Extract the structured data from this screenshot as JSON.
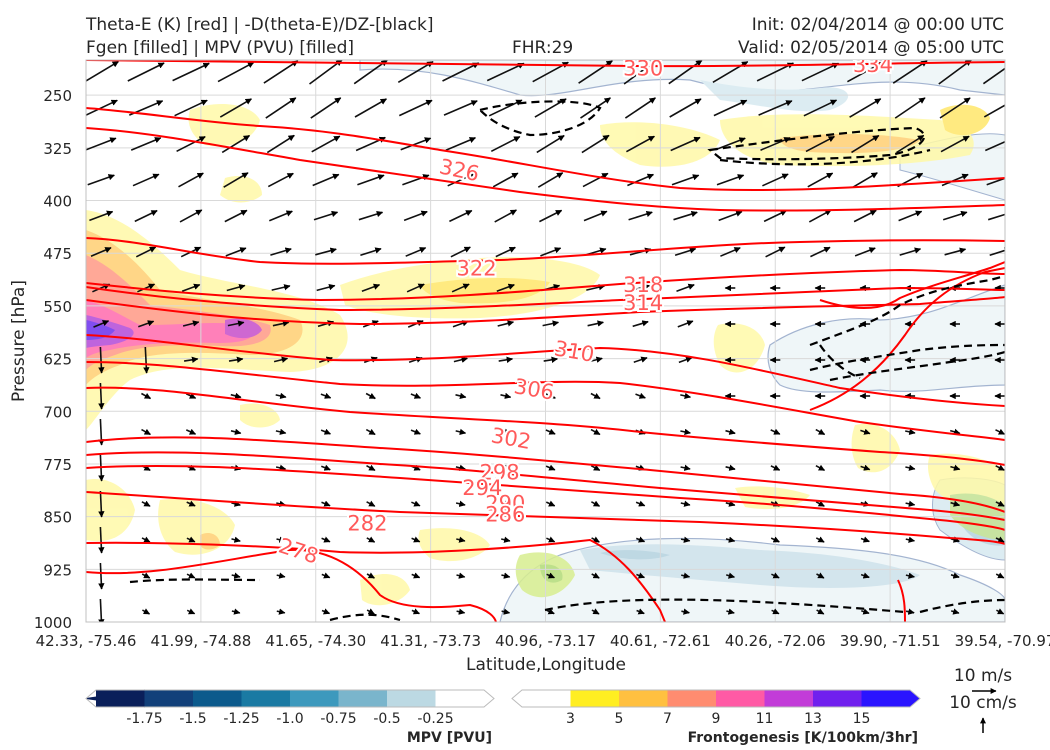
{
  "header": {
    "title_left_1": "Theta-E (K) [red] | -D(theta-E)/DZ-[black]",
    "title_left_2": "Fgen [filled] | MPV (PVU) [filled]",
    "fhr": "FHR:29",
    "init": "Init: 02/04/2014 @ 00:00 UTC",
    "valid": "Valid: 02/05/2014 @ 05:00 UTC"
  },
  "chart_data": {
    "type": "cross-section",
    "xlabel": "Latitude,Longitude",
    "ylabel": "Pressure [hPa]",
    "y_scale": "linear",
    "ylim": [
      1000,
      200
    ],
    "x_ticks": [
      "42.33, -75.46",
      "41.99, -74.88",
      "41.65, -74.30",
      "41.31, -73.73",
      "40.96, -73.17",
      "40.61, -72.61",
      "40.26, -72.06",
      "39.90, -71.51",
      "39.54, -70.97"
    ],
    "y_ticks": [
      250,
      325,
      400,
      475,
      550,
      625,
      700,
      775,
      850,
      925,
      1000
    ],
    "theta_e_labels": [
      {
        "value": "330",
        "xi": 4.85,
        "p": 212
      },
      {
        "value": "334",
        "xi": 6.85,
        "p": 207
      },
      {
        "value": "326",
        "xi": 3.25,
        "p": 357
      },
      {
        "value": "322",
        "xi": 3.4,
        "p": 497
      },
      {
        "value": "318",
        "xi": 4.85,
        "p": 520
      },
      {
        "value": "314",
        "xi": 4.85,
        "p": 546
      },
      {
        "value": "310",
        "xi": 4.25,
        "p": 615
      },
      {
        "value": "306",
        "xi": 3.9,
        "p": 669
      },
      {
        "value": "302",
        "xi": 3.7,
        "p": 739
      },
      {
        "value": "298",
        "xi": 3.6,
        "p": 787
      },
      {
        "value": "294",
        "xi": 3.45,
        "p": 809
      },
      {
        "value": "290",
        "xi": 3.65,
        "p": 831
      },
      {
        "value": "286",
        "xi": 3.65,
        "p": 847
      },
      {
        "value": "282",
        "xi": 2.45,
        "p": 860
      },
      {
        "value": "278",
        "xi": 1.85,
        "p": 899
      }
    ],
    "mpv_colorbar": {
      "label": "MPV [PVU]",
      "ticks": [
        "-1.75",
        "-1.5",
        "-1.25",
        "-1.0",
        "-0.75",
        "-0.5",
        "-0.25"
      ],
      "colors": [
        "#0a1f5a",
        "#12407a",
        "#0c5a8c",
        "#1a7aa3",
        "#3d99bd",
        "#7ab5cc",
        "#bcd9e3",
        "#ffffff"
      ]
    },
    "fgen_colorbar": {
      "label": "Frontogenesis [K/100km/3hr]",
      "ticks": [
        "3",
        "5",
        "7",
        "9",
        "11",
        "13",
        "15"
      ],
      "colors": [
        "#ffffff",
        "#ffee22",
        "#ffc040",
        "#ff8c70",
        "#ff5aa5",
        "#c23cd8",
        "#7020ee",
        "#2a14ff"
      ]
    },
    "wind_key": {
      "horizontal": "10 m/s",
      "vertical": "10 cm/s"
    }
  }
}
